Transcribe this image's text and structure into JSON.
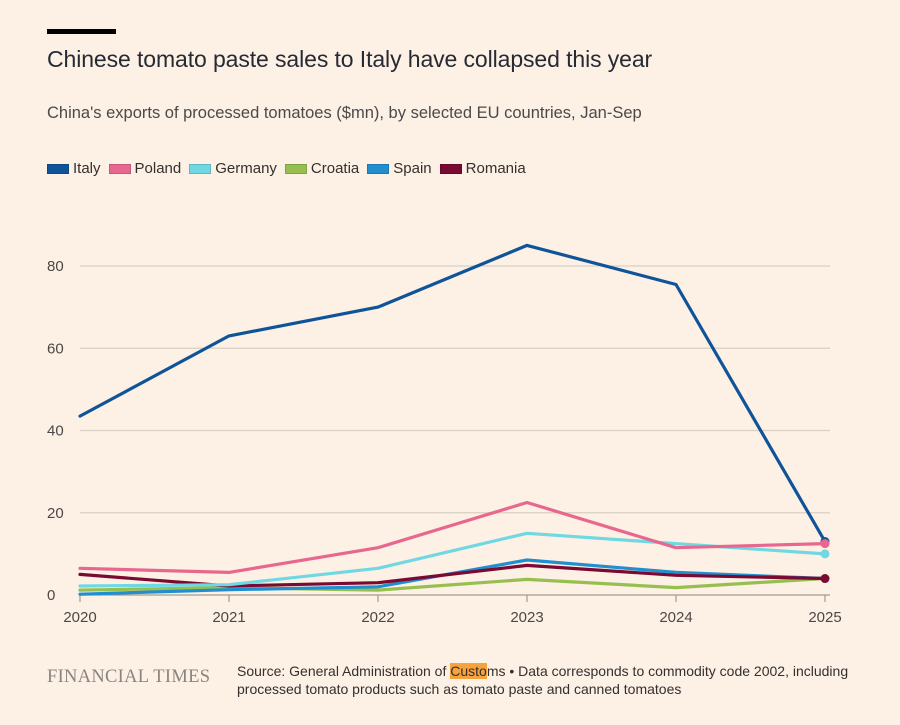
{
  "header": {
    "title": "Chinese tomato paste sales to Italy have collapsed this year",
    "subtitle": "China's exports of processed tomatoes ($mn), by selected EU countries, Jan-Sep"
  },
  "footer": {
    "brand": "FINANCIAL TIMES",
    "source_prefix": "Source: General Administration of ",
    "source_highlight": "Custo",
    "source_suffix": "ms • Data corresponds to commodity code 2002, including processed tomato products such as tomato paste and canned tomatoes"
  },
  "chart_data": {
    "type": "line",
    "title": "Chinese tomato paste sales to Italy have collapsed this year",
    "subtitle": "China's exports of processed tomatoes ($mn), by selected EU countries, Jan-Sep",
    "xlabel": "",
    "ylabel": "$mn",
    "x": [
      "2020",
      "2021",
      "2022",
      "2023",
      "2024",
      "2025"
    ],
    "ylim": [
      0,
      90
    ],
    "yticks": [
      0,
      20,
      40,
      60,
      80
    ],
    "grid": true,
    "legend_position": "top-left",
    "end_markers": true,
    "series": [
      {
        "name": "Italy",
        "color": "#0f5499",
        "values": [
          43.5,
          63,
          70,
          85,
          75.5,
          13
        ]
      },
      {
        "name": "Poland",
        "color": "#e8678f",
        "values": [
          6.5,
          5.5,
          11.5,
          22.5,
          11.5,
          12.5
        ]
      },
      {
        "name": "Germany",
        "color": "#70d8e3",
        "values": [
          2.2,
          2.5,
          6.5,
          15,
          12.5,
          10
        ]
      },
      {
        "name": "Croatia",
        "color": "#96bf4f",
        "values": [
          1.2,
          1.8,
          1.2,
          3.8,
          1.8,
          4
        ]
      },
      {
        "name": "Spain",
        "color": "#208fd0",
        "values": [
          0.2,
          1.3,
          2,
          8.5,
          5.5,
          4
        ]
      },
      {
        "name": "Romania",
        "color": "#7a0a31",
        "values": [
          5,
          2.2,
          3,
          7.2,
          4.8,
          4
        ]
      }
    ]
  }
}
